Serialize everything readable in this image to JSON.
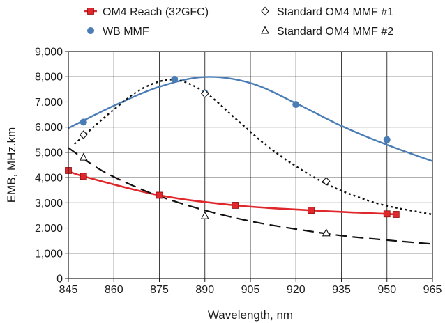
{
  "chart_data": {
    "type": "line",
    "title": "",
    "xlabel": "Wavelength, nm",
    "ylabel": "EMB, MHz.km",
    "xlim": [
      845,
      965
    ],
    "ylim": [
      0,
      9000
    ],
    "x_ticks": [
      "845",
      "860",
      "875",
      "890",
      "905",
      "920",
      "935",
      "950",
      "965"
    ],
    "y_ticks": [
      "0",
      "1,000",
      "2,000",
      "3,000",
      "4,000",
      "5,000",
      "6,000",
      "7,000",
      "8,000",
      "9,000"
    ],
    "grid": true,
    "legend_position": "top",
    "series": [
      {
        "name": "OM4 Reach (32GFC)",
        "color": "#e0282c",
        "marker": "square",
        "line": "solid",
        "points": [
          {
            "x": 845,
            "y": 4280
          },
          {
            "x": 850,
            "y": 4050
          },
          {
            "x": 875,
            "y": 3300
          },
          {
            "x": 900,
            "y": 2900
          },
          {
            "x": 925,
            "y": 2700
          },
          {
            "x": 950,
            "y": 2560
          },
          {
            "x": 953,
            "y": 2540
          }
        ]
      },
      {
        "name": "WB MMF",
        "color": "#4a7cb5",
        "marker": "circle",
        "line": "none",
        "points": [
          {
            "x": 850,
            "y": 6200
          },
          {
            "x": 880,
            "y": 7900
          },
          {
            "x": 890,
            "y": 7350
          },
          {
            "x": 920,
            "y": 6900
          },
          {
            "x": 950,
            "y": 5500
          }
        ],
        "fit": [
          {
            "x": 845,
            "y": 5960
          },
          {
            "x": 860,
            "y": 6850
          },
          {
            "x": 875,
            "y": 7600
          },
          {
            "x": 890,
            "y": 7990
          },
          {
            "x": 905,
            "y": 7750
          },
          {
            "x": 920,
            "y": 6950
          },
          {
            "x": 935,
            "y": 6050
          },
          {
            "x": 950,
            "y": 5300
          },
          {
            "x": 965,
            "y": 4650
          }
        ]
      },
      {
        "name": "Standard OM4 MMF #1",
        "color": "#111111",
        "marker": "diamond",
        "line": "dotted",
        "points": [
          {
            "x": 850,
            "y": 5700
          },
          {
            "x": 890,
            "y": 7330
          },
          {
            "x": 930,
            "y": 3850
          }
        ],
        "fit": [
          {
            "x": 847,
            "y": 5330
          },
          {
            "x": 860,
            "y": 6700
          },
          {
            "x": 870,
            "y": 7570
          },
          {
            "x": 880,
            "y": 7880
          },
          {
            "x": 890,
            "y": 7380
          },
          {
            "x": 900,
            "y": 6350
          },
          {
            "x": 910,
            "y": 5300
          },
          {
            "x": 920,
            "y": 4450
          },
          {
            "x": 930,
            "y": 3750
          },
          {
            "x": 940,
            "y": 3250
          },
          {
            "x": 950,
            "y": 2880
          },
          {
            "x": 965,
            "y": 2540
          }
        ]
      },
      {
        "name": "Standard OM4 MMF #2",
        "color": "#111111",
        "marker": "triangle",
        "line": "dashed",
        "points": [
          {
            "x": 850,
            "y": 4800
          },
          {
            "x": 890,
            "y": 2480
          },
          {
            "x": 930,
            "y": 1800
          }
        ],
        "fit": [
          {
            "x": 845,
            "y": 5180
          },
          {
            "x": 855,
            "y": 4350
          },
          {
            "x": 865,
            "y": 3750
          },
          {
            "x": 875,
            "y": 3260
          },
          {
            "x": 890,
            "y": 2700
          },
          {
            "x": 905,
            "y": 2270
          },
          {
            "x": 920,
            "y": 1960
          },
          {
            "x": 935,
            "y": 1700
          },
          {
            "x": 950,
            "y": 1520
          },
          {
            "x": 965,
            "y": 1370
          }
        ]
      }
    ]
  }
}
